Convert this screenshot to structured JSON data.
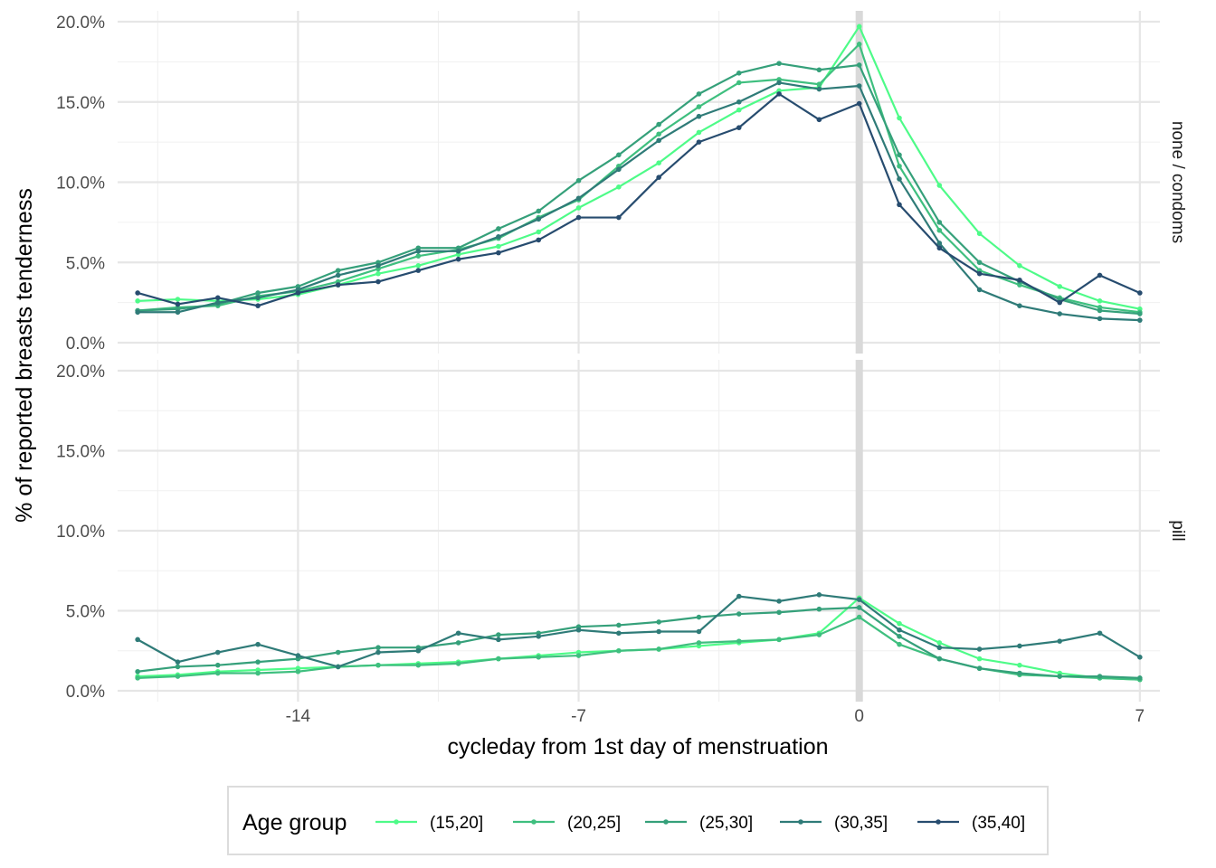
{
  "chart_data": {
    "type": "line",
    "xlabel": "cycleday from 1st day of menstruation",
    "ylabel": "% of reported breasts tenderness",
    "xlim": [
      -18.5,
      7.5
    ],
    "ylim": [
      0,
      0.2
    ],
    "x_ticks": [
      -14,
      -7,
      0,
      7
    ],
    "x_tick_labels": [
      "-14",
      "-7",
      "0",
      "7"
    ],
    "y_ticks": [
      0,
      0.05,
      0.1,
      0.15,
      0.2
    ],
    "y_tick_labels": [
      "0.0%",
      "5.0%",
      "10.0%",
      "15.0%",
      "20.0%"
    ],
    "vline_x": 0,
    "vline_color": "#d9d9d9",
    "grid": true,
    "legend": {
      "title": "Age group",
      "position": "bottom",
      "entries": [
        "(15,20]",
        "(20,25]",
        "(25,30]",
        "(30,35]",
        "(35,40]"
      ]
    },
    "x": [
      -18,
      -17,
      -16,
      -15,
      -14,
      -13,
      -12,
      -11,
      -10,
      -9,
      -8,
      -7,
      -6,
      -5,
      -4,
      -3,
      -2,
      -1,
      0,
      1,
      2,
      3,
      4,
      5,
      6,
      7
    ],
    "panels": [
      {
        "label": "none / condoms",
        "series": [
          {
            "name": "(15,20]",
            "color": "#4efb88",
            "values": [
              0.026,
              0.027,
              0.026,
              0.027,
              0.03,
              0.036,
              0.043,
              0.048,
              0.055,
              0.06,
              0.069,
              0.084,
              0.097,
              0.112,
              0.131,
              0.145,
              0.157,
              0.159,
              0.197,
              0.14,
              0.098,
              0.068,
              0.048,
              0.035,
              0.026,
              0.021
            ]
          },
          {
            "name": "(20,25]",
            "color": "#3fbf7f",
            "values": [
              0.02,
              0.022,
              0.023,
              0.029,
              0.032,
              0.038,
              0.046,
              0.054,
              0.058,
              0.065,
              0.078,
              0.089,
              0.11,
              0.13,
              0.147,
              0.162,
              0.164,
              0.161,
              0.186,
              0.11,
              0.07,
              0.045,
              0.036,
              0.028,
              0.022,
              0.019
            ]
          },
          {
            "name": "(25,30]",
            "color": "#35a07a",
            "values": [
              0.02,
              0.021,
              0.024,
              0.031,
              0.035,
              0.045,
              0.05,
              0.059,
              0.059,
              0.071,
              0.082,
              0.101,
              0.117,
              0.136,
              0.155,
              0.168,
              0.174,
              0.17,
              0.173,
              0.117,
              0.075,
              0.05,
              0.038,
              0.027,
              0.02,
              0.018
            ]
          },
          {
            "name": "(30,35]",
            "color": "#2f7b78",
            "values": [
              0.019,
              0.019,
              0.025,
              0.028,
              0.033,
              0.042,
              0.048,
              0.057,
              0.057,
              0.066,
              0.077,
              0.09,
              0.108,
              0.126,
              0.141,
              0.15,
              0.162,
              0.158,
              0.16,
              0.102,
              0.062,
              0.033,
              0.023,
              0.018,
              0.015,
              0.014
            ]
          },
          {
            "name": "(35,40]",
            "color": "#274c6f",
            "values": [
              0.031,
              0.024,
              0.028,
              0.023,
              0.031,
              0.036,
              0.038,
              0.045,
              0.052,
              0.056,
              0.064,
              0.078,
              0.078,
              0.103,
              0.125,
              0.134,
              0.155,
              0.139,
              0.149,
              0.086,
              0.059,
              0.043,
              0.039,
              0.025,
              0.042,
              0.031
            ]
          }
        ]
      },
      {
        "label": "pill",
        "series": [
          {
            "name": "(15,20]",
            "color": "#4efb88",
            "values": [
              0.009,
              0.01,
              0.012,
              0.013,
              0.014,
              0.015,
              0.016,
              0.017,
              0.018,
              0.02,
              0.022,
              0.024,
              0.025,
              0.026,
              0.028,
              0.03,
              0.032,
              0.036,
              0.058,
              0.042,
              0.03,
              0.02,
              0.016,
              0.011,
              0.008,
              0.007
            ]
          },
          {
            "name": "(20,25]",
            "color": "#3fbf7f",
            "values": [
              0.008,
              0.009,
              0.011,
              0.011,
              0.012,
              0.015,
              0.016,
              0.016,
              0.017,
              0.02,
              0.021,
              0.022,
              0.025,
              0.026,
              0.03,
              0.031,
              0.032,
              0.035,
              0.046,
              0.029,
              0.02,
              0.014,
              0.01,
              0.009,
              0.008,
              0.007
            ]
          },
          {
            "name": "(25,30]",
            "color": "#35a07a",
            "values": [
              0.012,
              0.015,
              0.016,
              0.018,
              0.02,
              0.024,
              0.027,
              0.027,
              0.03,
              0.035,
              0.036,
              0.04,
              0.041,
              0.043,
              0.046,
              0.048,
              0.049,
              0.051,
              0.052,
              0.034,
              0.02,
              0.014,
              0.011,
              0.009,
              0.009,
              0.008
            ]
          },
          {
            "name": "(30,35]",
            "color": "#2f7b78",
            "values": [
              0.032,
              0.018,
              0.024,
              0.029,
              0.022,
              0.015,
              0.024,
              0.025,
              0.036,
              0.032,
              0.034,
              0.038,
              0.036,
              0.037,
              0.037,
              0.059,
              0.056,
              0.06,
              0.057,
              0.038,
              0.027,
              0.026,
              0.028,
              0.031,
              0.036,
              0.021
            ]
          },
          {
            "name": "(35,40]",
            "color": "#274c6f",
            "values": []
          }
        ]
      }
    ]
  }
}
